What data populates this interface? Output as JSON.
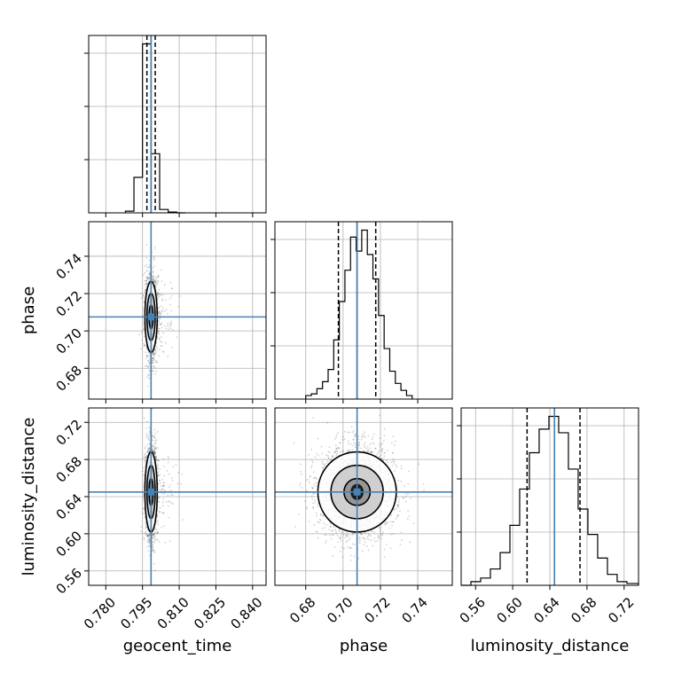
{
  "chart_data": {
    "type": "corner",
    "parameters": [
      "geocent_time",
      "phase",
      "luminosity_distance"
    ],
    "x_axis_labels": [
      "geocent_time",
      "phase",
      "luminosity_distance"
    ],
    "y_axis_labels": [
      "",
      "phase",
      "luminosity_distance"
    ],
    "truths": {
      "geocent_time": 0.7985,
      "phase": 0.7075,
      "luminosity_distance": 0.645
    },
    "truth_color": "#4682b4",
    "ranges": {
      "geocent_time": [
        0.773,
        0.8455
      ],
      "phase": [
        0.6635,
        0.7585
      ],
      "luminosity_distance": [
        0.5445,
        0.7355
      ]
    },
    "ticks": {
      "geocent_time": [
        "0.780",
        "0.795",
        "0.810",
        "0.825",
        "0.840"
      ],
      "phase": [
        "0.68",
        "0.70",
        "0.72",
        "0.74"
      ],
      "luminosity_distance": [
        "0.56",
        "0.60",
        "0.64",
        "0.68",
        "0.72"
      ]
    },
    "grid": true,
    "histograms": {
      "geocent_time": {
        "bin_edges": [
          0.788,
          0.7915,
          0.795,
          0.7985,
          0.802,
          0.8055,
          0.809,
          0.8125
        ],
        "values": [
          0.01,
          0.21,
          1.0,
          0.35,
          0.02,
          0.005,
          0.0
        ],
        "quantiles": [
          0.7968,
          0.7985,
          0.8002
        ]
      },
      "phase": {
        "bin_edges": [
          0.68,
          0.683,
          0.686,
          0.689,
          0.692,
          0.695,
          0.698,
          0.701,
          0.704,
          0.707,
          0.71,
          0.713,
          0.716,
          0.719,
          0.722,
          0.725,
          0.728,
          0.731,
          0.734,
          0.737
        ],
        "values": [
          0.02,
          0.03,
          0.06,
          0.1,
          0.17,
          0.34,
          0.56,
          0.74,
          0.93,
          0.85,
          0.97,
          0.83,
          0.69,
          0.48,
          0.29,
          0.16,
          0.09,
          0.05,
          0.02
        ],
        "quantiles": [
          0.6975,
          0.7075,
          0.7175
        ]
      },
      "luminosity_distance": {
        "bin_edges": [
          0.5445,
          0.555,
          0.5655,
          0.576,
          0.5865,
          0.597,
          0.6075,
          0.618,
          0.6285,
          0.639,
          0.6495,
          0.66,
          0.6705,
          0.681,
          0.6915,
          0.702,
          0.7125,
          0.723,
          0.7355
        ],
        "values": [
          0.0,
          0.02,
          0.04,
          0.09,
          0.18,
          0.33,
          0.53,
          0.73,
          0.86,
          0.93,
          0.84,
          0.64,
          0.42,
          0.28,
          0.15,
          0.06,
          0.02,
          0.01
        ],
        "quantiles": [
          0.6155,
          0.645,
          0.6725
        ]
      }
    },
    "joint": {
      "phase|geocent_time": {
        "center": [
          0.7985,
          0.7075
        ],
        "spread": [
          0.0012,
          0.011
        ],
        "levels": [
          0.5,
          1.0,
          1.5
        ]
      },
      "luminosity_distance|geocent_time": {
        "center": [
          0.7985,
          0.645
        ],
        "spread": [
          0.0012,
          0.025
        ],
        "levels": [
          0.5,
          1.0,
          1.5
        ]
      },
      "luminosity_distance|phase": {
        "center": [
          0.7075,
          0.645
        ],
        "spread": [
          0.01,
          0.025
        ],
        "levels": [
          0.5,
          1.0,
          1.5
        ]
      }
    }
  }
}
